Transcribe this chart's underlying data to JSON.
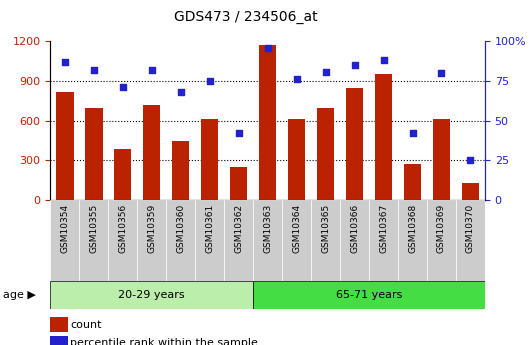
{
  "title": "GDS473 / 234506_at",
  "categories": [
    "GSM10354",
    "GSM10355",
    "GSM10356",
    "GSM10359",
    "GSM10360",
    "GSM10361",
    "GSM10362",
    "GSM10363",
    "GSM10364",
    "GSM10365",
    "GSM10366",
    "GSM10367",
    "GSM10368",
    "GSM10369",
    "GSM10370"
  ],
  "counts": [
    820,
    700,
    390,
    720,
    450,
    610,
    250,
    1170,
    615,
    700,
    850,
    950,
    270,
    615,
    130
  ],
  "percentiles": [
    87,
    82,
    71,
    82,
    68,
    75,
    42,
    96,
    76,
    81,
    85,
    88,
    42,
    80,
    25
  ],
  "group1_label": "20-29 years",
  "group2_label": "65-71 years",
  "group1_count": 7,
  "bar_color": "#bb2200",
  "dot_color": "#2222cc",
  "group1_color": "#bbeeaa",
  "group2_color": "#44dd44",
  "tick_bg_color": "#cccccc",
  "age_label": "age",
  "legend_count": "count",
  "legend_pct": "percentile rank within the sample",
  "ylim_left": [
    0,
    1200
  ],
  "ylim_right": [
    0,
    100
  ],
  "yticks_left": [
    0,
    300,
    600,
    900,
    1200
  ],
  "yticks_right": [
    0,
    25,
    50,
    75,
    100
  ],
  "grid_color": "#000000"
}
